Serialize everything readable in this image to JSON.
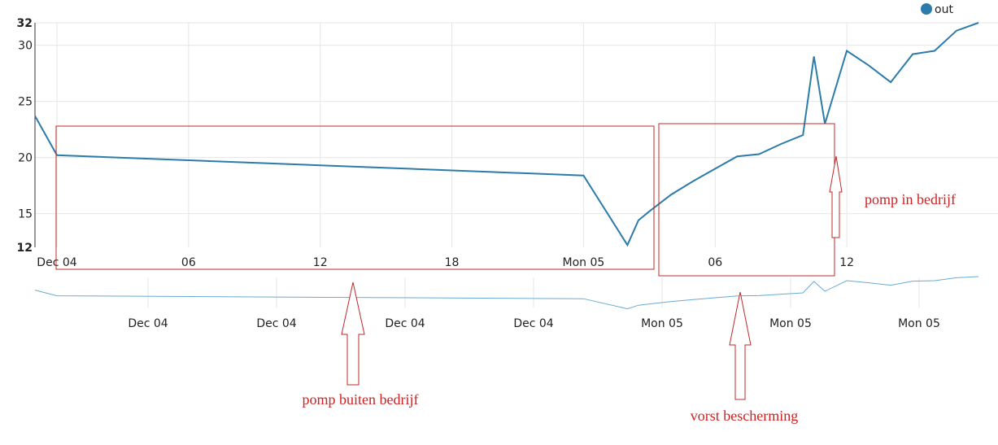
{
  "chart_data": {
    "type": "line",
    "title": "",
    "legend": {
      "position": "top-right",
      "entries": [
        "out"
      ]
    },
    "colors": {
      "series": "#2b7bab",
      "overview": "#6aaad2",
      "annotation": "#c0282a",
      "grid": "#e6e6e6"
    },
    "grid": true,
    "y_ticks": [
      {
        "label": "32",
        "value": 32,
        "bold": true
      },
      {
        "label": "30",
        "value": 30,
        "bold": false
      },
      {
        "label": "25",
        "value": 25,
        "bold": false
      },
      {
        "label": "20",
        "value": 20,
        "bold": false
      },
      {
        "label": "15",
        "value": 15,
        "bold": false
      },
      {
        "label": "12",
        "value": 12,
        "bold": true
      }
    ],
    "ylim": [
      12,
      32
    ],
    "x_range_hours": [
      -1,
      42
    ],
    "x_ticks": [
      {
        "label": "Dec 04",
        "hour": 0
      },
      {
        "label": "06",
        "hour": 6
      },
      {
        "label": "12",
        "hour": 12
      },
      {
        "label": "18",
        "hour": 18
      },
      {
        "label": "Mon 05",
        "hour": 24
      },
      {
        "label": "06",
        "hour": 30
      },
      {
        "label": "12",
        "hour": 36
      }
    ],
    "overview_ticks": [
      "Dec 04",
      "Dec 04",
      "Dec 04",
      "Dec 04",
      "Mon 05",
      "Mon 05",
      "Mon 05"
    ],
    "series": [
      {
        "name": "out",
        "x_hours": [
          -1,
          0,
          24,
          26,
          26.5,
          27,
          28,
          29,
          30,
          31,
          32,
          33,
          34,
          34.5,
          35,
          36,
          37,
          38,
          39,
          40,
          41,
          42
        ],
        "y": [
          23.7,
          20.2,
          18.4,
          12.2,
          14.4,
          15.2,
          16.7,
          17.9,
          19.0,
          20.1,
          20.3,
          21.2,
          22.0,
          29.0,
          23.0,
          29.5,
          28.2,
          26.7,
          29.2,
          29.5,
          31.3,
          32.0
        ]
      }
    ]
  },
  "annotations": {
    "pump_off": "pomp buiten bedrijf",
    "frost": "vorst bescherming",
    "pump_on": "pomp in bedrijf"
  }
}
